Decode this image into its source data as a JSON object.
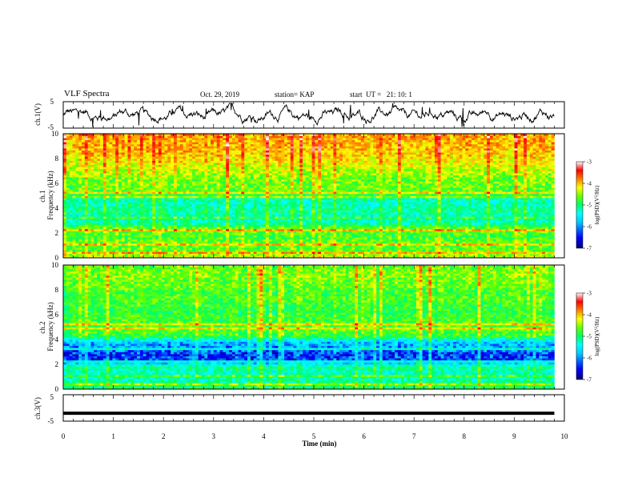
{
  "header": {
    "title": "VLF Spectra",
    "date": "Oct. 29, 2019",
    "station": "station= KAP",
    "start": "start  UT =   21: 10: 1"
  },
  "colors": {
    "colormap": [
      "#00007a",
      "#0000ff",
      "#00c8ff",
      "#00ffff",
      "#00ff64",
      "#64ff00",
      "#ffff00",
      "#ff8000",
      "#ff0000",
      "#ffffff"
    ]
  },
  "chart_data": [
    {
      "type": "line",
      "panel": "ch.1 waveform",
      "ylabel": "ch.1(V)",
      "yticks": [
        "5",
        "-5"
      ],
      "ylim": [
        -5,
        5
      ],
      "xlim": [
        0,
        10
      ],
      "series": [
        {
          "description": "noisy signal oscillating roughly between -3 and 2 V",
          "approx_range": [
            -3,
            2
          ]
        }
      ]
    },
    {
      "type": "heatmap",
      "panel": "ch.1 spectrogram",
      "ylabel": "ch.1 Frequency (kHz)",
      "yticks": [
        "0",
        "2",
        "4",
        "6",
        "8",
        "10"
      ],
      "ylim": [
        0,
        10
      ],
      "xlim": [
        0,
        10
      ],
      "data_end_min": 9.8,
      "colorbar": {
        "label": "log(PSD)(V²/Hz)",
        "ticks": [
          "-3",
          "-4",
          "-5",
          "-6",
          "-7"
        ],
        "range": [
          -7,
          -3
        ]
      },
      "frequency_profile": [
        {
          "f": 0.2,
          "v": -4.6
        },
        {
          "f": 0.7,
          "v": -4.9
        },
        {
          "f": 1.2,
          "v": -4.8
        },
        {
          "f": 1.8,
          "v": -5.0
        },
        {
          "f": 2.3,
          "v": -4.7
        },
        {
          "f": 2.8,
          "v": -5.4
        },
        {
          "f": 3.3,
          "v": -5.6
        },
        {
          "f": 3.8,
          "v": -5.3
        },
        {
          "f": 4.3,
          "v": -5.5
        },
        {
          "f": 4.8,
          "v": -5.4
        },
        {
          "f": 5.3,
          "v": -4.9
        },
        {
          "f": 5.8,
          "v": -4.8
        },
        {
          "f": 6.3,
          "v": -4.8
        },
        {
          "f": 6.8,
          "v": -4.6
        },
        {
          "f": 7.3,
          "v": -4.5
        },
        {
          "f": 7.8,
          "v": -4.3
        },
        {
          "f": 8.3,
          "v": -4.2
        },
        {
          "f": 8.8,
          "v": -4.1
        },
        {
          "f": 9.3,
          "v": -4.1
        },
        {
          "f": 9.8,
          "v": -4.0
        }
      ]
    },
    {
      "type": "heatmap",
      "panel": "ch.2 spectrogram",
      "ylabel": "ch.2 Frequency (kHz)",
      "yticks": [
        "0",
        "2",
        "4",
        "6",
        "8",
        "10"
      ],
      "ylim": [
        0,
        10
      ],
      "xlim": [
        0,
        10
      ],
      "data_end_min": 9.8,
      "colorbar": {
        "label": "log(PSD)(V²/Hz)",
        "ticks": [
          "-3",
          "-4",
          "-5",
          "-6",
          "-7"
        ],
        "range": [
          -7,
          -3
        ]
      },
      "frequency_profile": [
        {
          "f": 0.2,
          "v": -5.2
        },
        {
          "f": 0.7,
          "v": -5.4
        },
        {
          "f": 1.2,
          "v": -5.6
        },
        {
          "f": 1.8,
          "v": -5.3
        },
        {
          "f": 2.3,
          "v": -6.4
        },
        {
          "f": 2.8,
          "v": -6.5
        },
        {
          "f": 3.3,
          "v": -6.2
        },
        {
          "f": 3.8,
          "v": -6.0
        },
        {
          "f": 4.3,
          "v": -5.0
        },
        {
          "f": 4.8,
          "v": -4.9
        },
        {
          "f": 5.3,
          "v": -4.9
        },
        {
          "f": 5.8,
          "v": -5.0
        },
        {
          "f": 6.3,
          "v": -5.1
        },
        {
          "f": 6.8,
          "v": -5.0
        },
        {
          "f": 7.3,
          "v": -4.9
        },
        {
          "f": 7.8,
          "v": -5.0
        },
        {
          "f": 8.3,
          "v": -4.8
        },
        {
          "f": 8.8,
          "v": -4.8
        },
        {
          "f": 9.3,
          "v": -4.7
        },
        {
          "f": 9.8,
          "v": -4.8
        }
      ]
    },
    {
      "type": "line",
      "panel": "ch.3 waveform",
      "ylabel": "ch.3(V)",
      "yticks": [
        "5",
        "-5"
      ],
      "ylim": [
        -5,
        5
      ],
      "xlim": [
        0,
        10
      ],
      "xlabel": "Time (min)",
      "xticks": [
        "0",
        "1",
        "2",
        "3",
        "4",
        "5",
        "6",
        "7",
        "8",
        "9",
        "10"
      ],
      "series": [
        {
          "description": "flat line",
          "approx_value": -2
        }
      ]
    }
  ]
}
